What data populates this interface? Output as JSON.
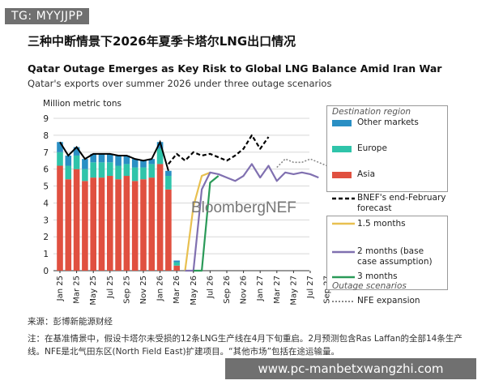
{
  "watermark_top": "TG: MYYJJPP",
  "watermark_bottom": "www.pc-manbetxwangzhi.com",
  "cn_title": "三种中断情景下2026年夏季卡塔尔LNG出口情况",
  "logo_text": "BloombergNEF",
  "legend": {
    "destination_header": "Destination region",
    "other_markets": "Other markets",
    "europe": "Europe",
    "asia": "Asia",
    "bnef_forecast": "BNEF's end-February forecast",
    "s1_5": "1.5 months",
    "s2": "2 months (base case assumption)",
    "s3": "3 months",
    "scenarios_header": "Outage scenarios",
    "nfe": "NFE expansion"
  },
  "source": "来源：彭博新能源财经",
  "note": "注：在基准情景中，假设卡塔尔未受损的12条LNG生产线在4月下旬重启。2月预测包含Ras Laffan的全部14条生产线。NFE是北气田东区(North Field East)扩建项目。“其他市场”包括在途运输量。",
  "colors": {
    "asia": "#e05040",
    "europe": "#2fc4aa",
    "other": "#2a8fc4",
    "bnef": "#000000",
    "s1_5": "#e8c050",
    "s2": "#8070b0",
    "s3": "#2a9a58",
    "nfe": "#888888"
  },
  "chart_data": {
    "type": "bar",
    "title": "Qatar Outage Emerges as Key Risk to Global LNG Balance Amid Iran War",
    "subtitle": "Qatar's exports over summer 2026 under three outage scenarios",
    "ylabel": "Million metric tons",
    "ylim": [
      0,
      9
    ],
    "yticks": [
      0,
      1,
      2,
      3,
      4,
      5,
      6,
      7,
      8,
      9
    ],
    "x_months": [
      "Jan 25",
      "Feb 25",
      "Mar 25",
      "Apr 25",
      "May 25",
      "Jun 25",
      "Jul 25",
      "Aug 25",
      "Sep 25",
      "Oct 25",
      "Nov 25",
      "Dec 25",
      "Jan 26",
      "Feb 26",
      "Mar 26",
      "Apr 26",
      "May 26",
      "Jun 26",
      "Jul 26",
      "Aug 26",
      "Sep 26",
      "Oct 26",
      "Nov 26",
      "Dec 26",
      "Jan 27",
      "Feb 27",
      "Mar 27",
      "Apr 27",
      "May 27",
      "Jun 27",
      "Jul 27",
      "Aug 27",
      "Sep 27"
    ],
    "x_tick_labels": [
      "Jan 25",
      "Mar 25",
      "May 25",
      "Jul 25",
      "Sep 25",
      "Nov 25",
      "Jan 26",
      "Mar 26",
      "May 26",
      "Jul 26",
      "Sep 26",
      "Nov 26",
      "Jan 27",
      "Mar 27",
      "May 27",
      "Jul 27",
      "Sep 27"
    ],
    "bars": {
      "asia": [
        6.2,
        5.4,
        6.0,
        5.3,
        5.5,
        5.5,
        5.6,
        5.4,
        5.6,
        5.3,
        5.4,
        5.5,
        6.3,
        4.8,
        0.3
      ],
      "europe": [
        0.8,
        0.8,
        0.8,
        0.7,
        0.9,
        0.9,
        0.8,
        0.8,
        0.7,
        0.8,
        0.7,
        0.8,
        0.9,
        0.8,
        0.2
      ],
      "other": [
        0.6,
        0.6,
        0.5,
        0.6,
        0.5,
        0.5,
        0.5,
        0.6,
        0.5,
        0.5,
        0.4,
        0.3,
        0.4,
        0.3,
        0.1
      ]
    },
    "series": [
      {
        "key": "bnef",
        "style": "dashed",
        "x_start": 13,
        "values": [
          6.3,
          6.9,
          6.5,
          7.0,
          6.8,
          6.9,
          6.7,
          6.5,
          6.8,
          7.2,
          8.0,
          7.2,
          7.9
        ]
      },
      {
        "key": "s1_5",
        "style": "solid",
        "x_start": 15,
        "values": [
          0,
          3.8,
          5.6,
          5.8
        ]
      },
      {
        "key": "s2",
        "style": "solid",
        "x_start": 15,
        "values": [
          0,
          0,
          4.8,
          5.8,
          5.7,
          5.5,
          5.3,
          5.6,
          6.3,
          5.5,
          6.2,
          5.3,
          5.8,
          5.7,
          5.8,
          5.7,
          5.5
        ]
      },
      {
        "key": "s3",
        "style": "solid",
        "x_start": 16,
        "values": [
          0,
          0,
          5.2,
          5.6
        ]
      },
      {
        "key": "nfe",
        "style": "dotted",
        "x_start": 26,
        "values": [
          6.1,
          6.6,
          6.4,
          6.4,
          6.6,
          6.4,
          6.2
        ]
      }
    ]
  }
}
